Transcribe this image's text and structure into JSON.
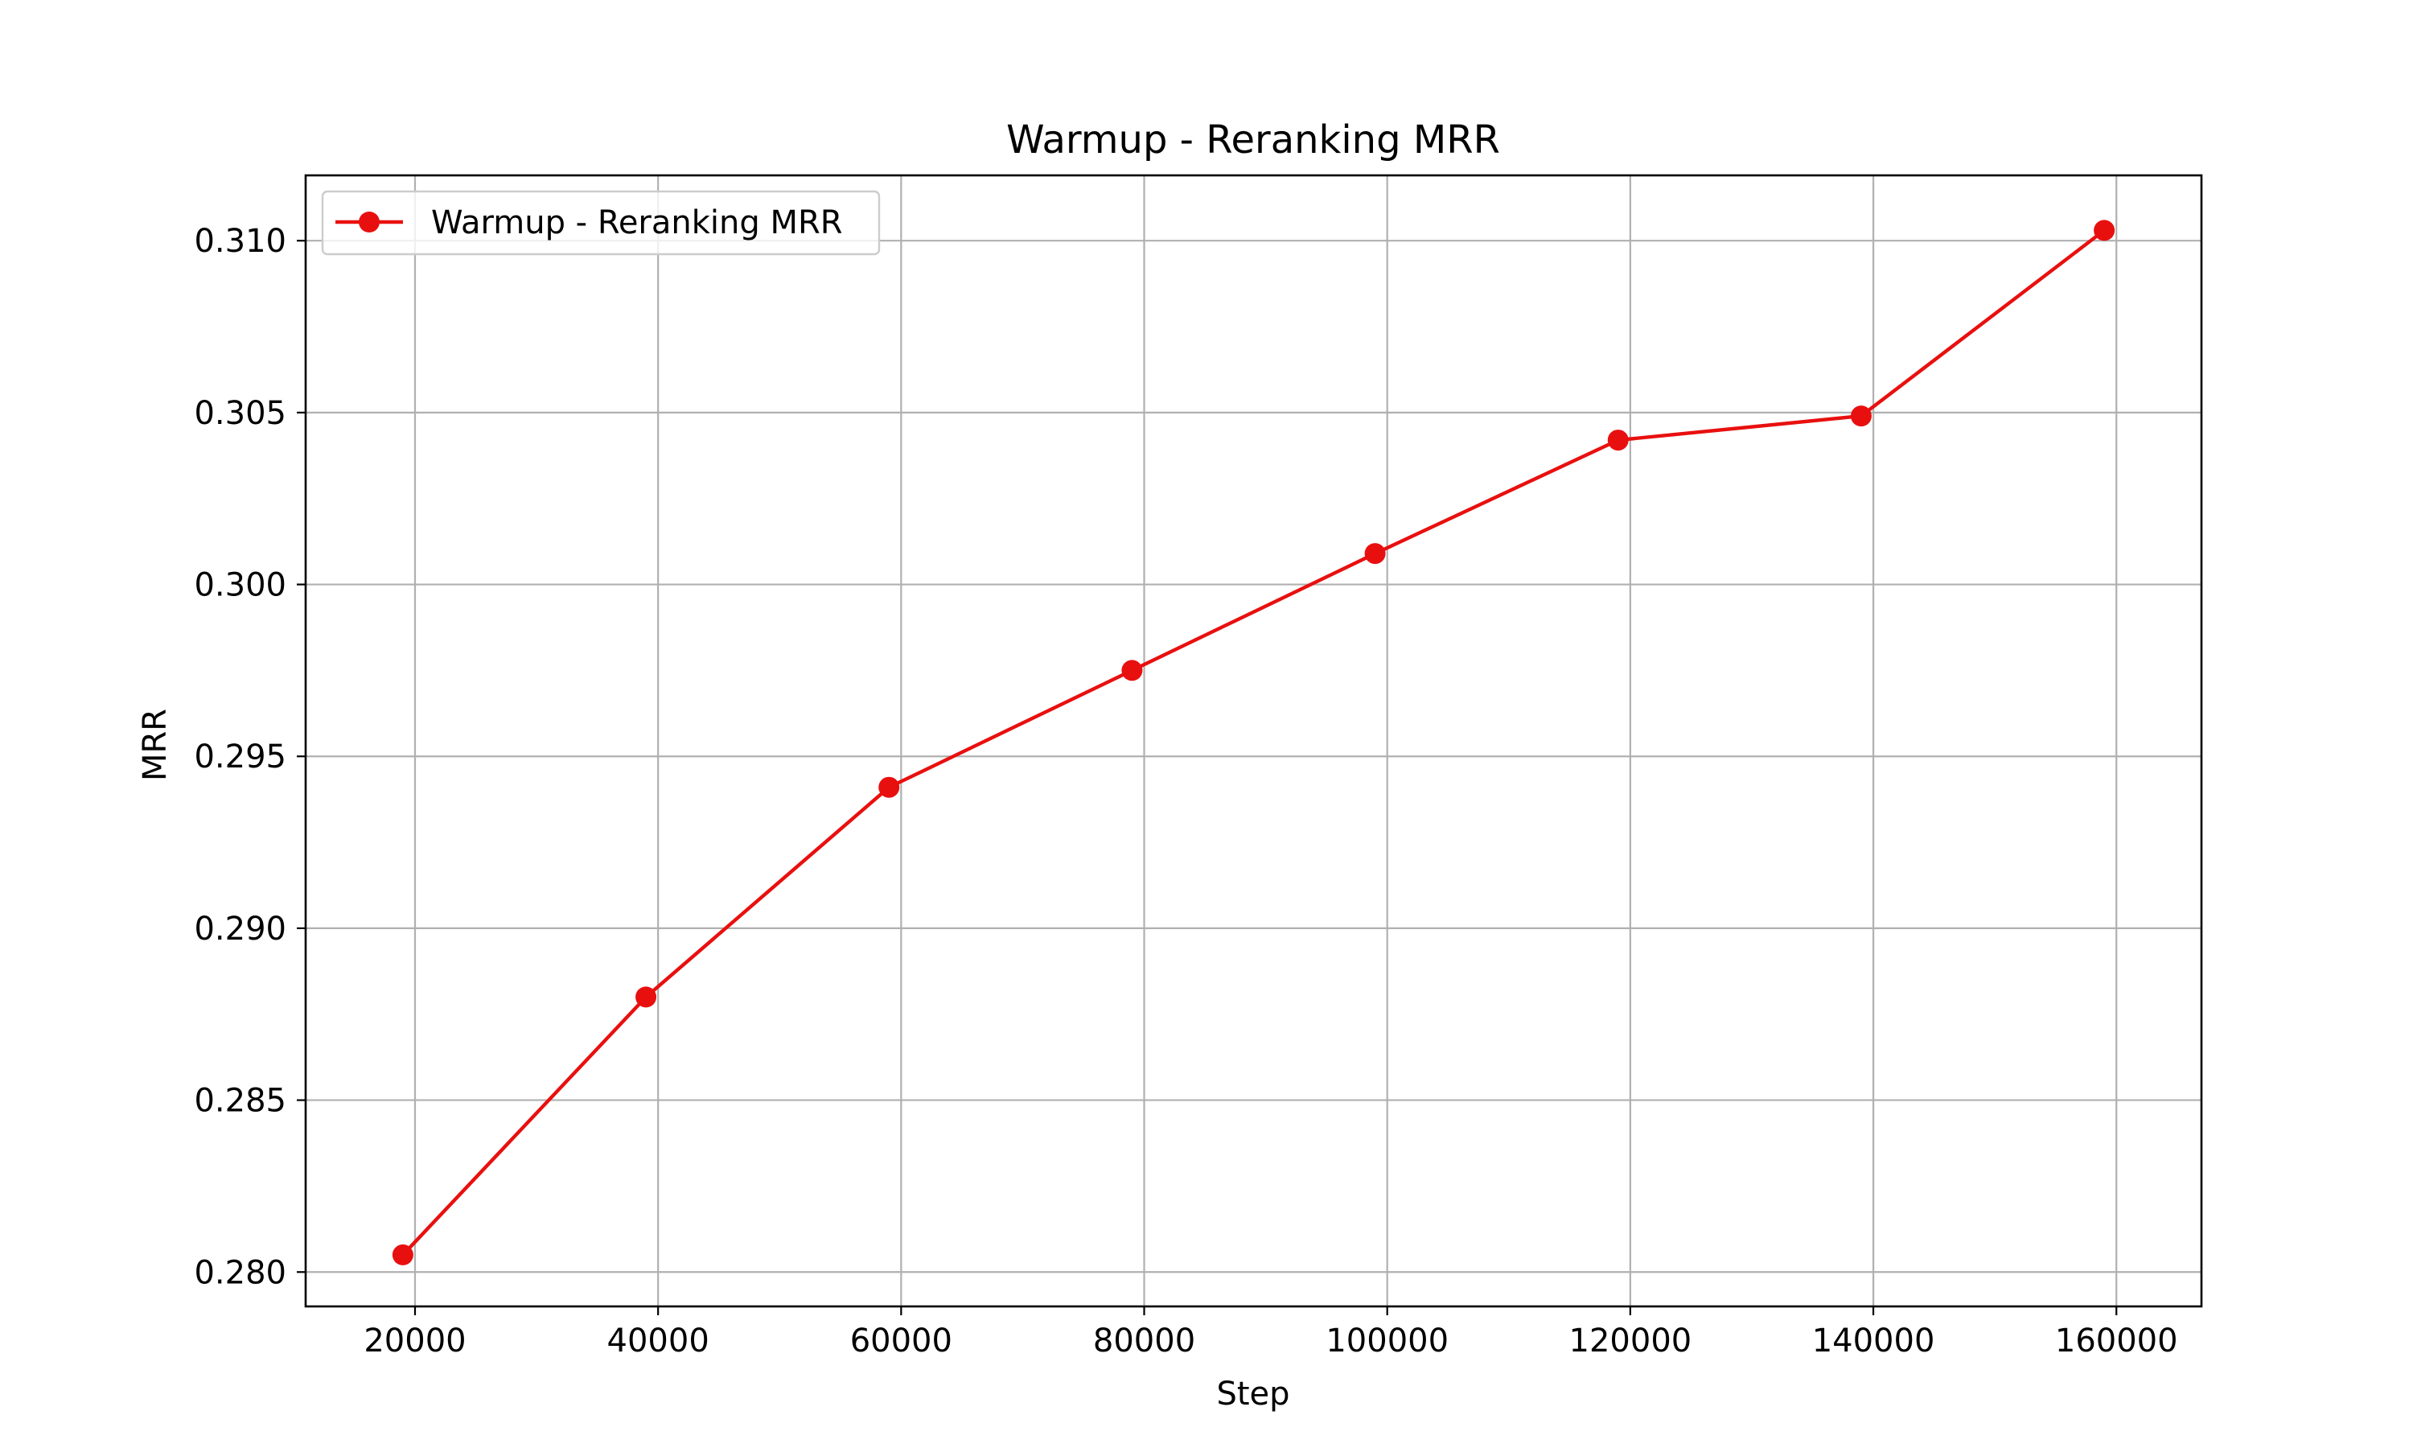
{
  "chart_data": {
    "type": "line",
    "title": "Warmup - Reranking MRR",
    "xlabel": "Step",
    "ylabel": "MRR",
    "xlim": [
      11000,
      167000
    ],
    "ylim": [
      0.279,
      0.3119
    ],
    "xticks": [
      20000,
      40000,
      60000,
      80000,
      100000,
      120000,
      140000,
      160000
    ],
    "xtick_labels": [
      "20000",
      "40000",
      "60000",
      "80000",
      "100000",
      "120000",
      "140000",
      "160000"
    ],
    "yticks": [
      0.28,
      0.285,
      0.29,
      0.295,
      0.3,
      0.305,
      0.31
    ],
    "ytick_labels": [
      "0.280",
      "0.285",
      "0.290",
      "0.295",
      "0.300",
      "0.305",
      "0.310"
    ],
    "grid": true,
    "legend_position": "upper-left",
    "series": [
      {
        "name": "Warmup - Reranking MRR",
        "color": "#e8100f",
        "marker": "circle",
        "x": [
          19000,
          39000,
          59000,
          79000,
          99000,
          119000,
          139000,
          159000
        ],
        "y": [
          0.2805,
          0.288,
          0.2941,
          0.2975,
          0.3009,
          0.3042,
          0.3049,
          0.3103
        ]
      }
    ]
  }
}
